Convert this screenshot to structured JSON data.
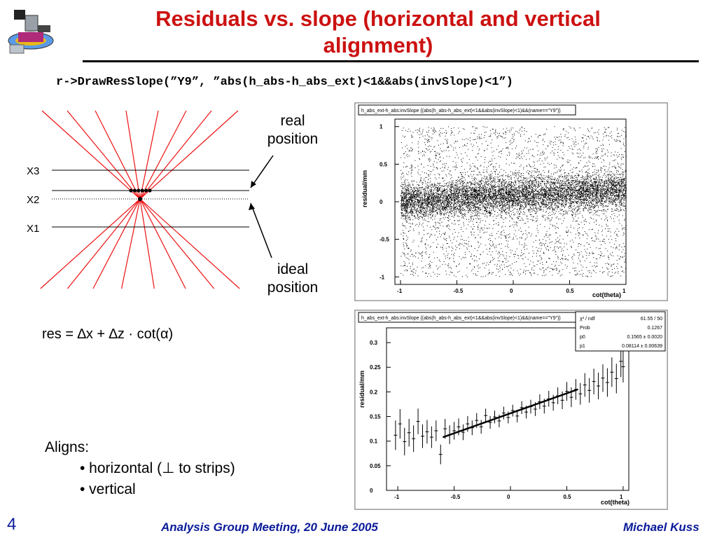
{
  "slide": {
    "title": "Residuals vs. slope (horizontal and vertical alignment)",
    "code_line": "r->DrawResSlope(”Y9”, ”abs(h_abs-h_abs_ext)<1&&abs(invSlope)<1”)",
    "page_number": "4",
    "footer_center": "Analysis Group Meeting, 20 June 2005",
    "footer_right": "Michael Kuss"
  },
  "diagram": {
    "label_real": "real position",
    "label_ideal": "ideal position",
    "planes": [
      "X3",
      "X2",
      "X1"
    ]
  },
  "formula": "res = ∆x + ∆z · cot(α)",
  "aligns": {
    "heading": "Aligns:",
    "items": [
      "• horizontal (⊥ to strips)",
      "• vertical"
    ]
  },
  "colors": {
    "title": "#cc1111",
    "footer": "#0a1a9a",
    "ray": "#ee1111"
  },
  "chart_data": [
    {
      "type": "scatter",
      "title": "h_abs_ext-h_abs:invSlope {(abs(h_abs-h_abs_ext)<1&&abs(invSlope)<1)&&(name==\"Y9\")}",
      "xlabel": "cot(theta)",
      "ylabel": "residual/mm",
      "xlim": [
        -1.05,
        1.0
      ],
      "ylim": [
        -1.1,
        1.1
      ],
      "xticks": [
        "-1",
        "-0.5",
        "0",
        "0.5",
        "1"
      ],
      "yticks": [
        "-1",
        "-0.5",
        "0",
        "0.5",
        "1"
      ],
      "description_core_band": {
        "center": 0.1,
        "spread": 0.12
      },
      "description_background": "uniform"
    },
    {
      "type": "scatter",
      "title": "h_abs_ext-h_abs:invSlope {(abs(h_abs-h_abs_ext)<1&&abs(invSlope)<1)&&(name==\"Y9\")}",
      "xlabel": "cot(theta)",
      "ylabel": "residual/mm",
      "xlim": [
        -1.1,
        1.05
      ],
      "ylim": [
        0,
        0.33
      ],
      "xticks": [
        "-1",
        "-0.5",
        "0",
        "0.5",
        "1"
      ],
      "yticks": [
        "0",
        "0.05",
        "0.1",
        "0.15",
        "0.2",
        "0.25",
        "0.3"
      ],
      "fit": {
        "x_from": -0.6,
        "x_to": 0.6,
        "p0": 0.1565,
        "p1": 0.08114
      },
      "stats": [
        {
          "name": "χ² / ndf",
          "value": "61.55 / 50"
        },
        {
          "name": "Prob",
          "value": "0.1267"
        },
        {
          "name": "p0",
          "value": "0.1565 ± 0.0020"
        },
        {
          "name": "p1",
          "value": "0.08114 ± 0.00639"
        }
      ],
      "points": [
        [
          -1.02,
          0.112,
          0.03
        ],
        [
          -0.98,
          0.135,
          0.03
        ],
        [
          -0.94,
          0.099,
          0.028
        ],
        [
          -0.9,
          0.117,
          0.028
        ],
        [
          -0.86,
          0.105,
          0.027
        ],
        [
          -0.82,
          0.14,
          0.026
        ],
        [
          -0.78,
          0.11,
          0.024
        ],
        [
          -0.74,
          0.119,
          0.024
        ],
        [
          -0.7,
          0.108,
          0.022
        ],
        [
          -0.66,
          0.121,
          0.021
        ],
        [
          -0.62,
          0.073,
          0.02
        ],
        [
          -0.58,
          0.125,
          0.02
        ],
        [
          -0.54,
          0.113,
          0.019
        ],
        [
          -0.5,
          0.121,
          0.018
        ],
        [
          -0.46,
          0.129,
          0.017
        ],
        [
          -0.42,
          0.118,
          0.016
        ],
        [
          -0.38,
          0.135,
          0.016
        ],
        [
          -0.34,
          0.127,
          0.015
        ],
        [
          -0.3,
          0.142,
          0.015
        ],
        [
          -0.26,
          0.129,
          0.014
        ],
        [
          -0.22,
          0.152,
          0.014
        ],
        [
          -0.18,
          0.138,
          0.013
        ],
        [
          -0.14,
          0.149,
          0.013
        ],
        [
          -0.1,
          0.141,
          0.013
        ],
        [
          -0.06,
          0.157,
          0.013
        ],
        [
          -0.02,
          0.148,
          0.012
        ],
        [
          0.02,
          0.162,
          0.012
        ],
        [
          0.06,
          0.151,
          0.013
        ],
        [
          0.1,
          0.168,
          0.013
        ],
        [
          0.14,
          0.159,
          0.013
        ],
        [
          0.18,
          0.17,
          0.014
        ],
        [
          0.22,
          0.165,
          0.014
        ],
        [
          0.26,
          0.18,
          0.015
        ],
        [
          0.3,
          0.171,
          0.015
        ],
        [
          0.34,
          0.186,
          0.016
        ],
        [
          0.38,
          0.178,
          0.016
        ],
        [
          0.42,
          0.192,
          0.017
        ],
        [
          0.46,
          0.183,
          0.018
        ],
        [
          0.5,
          0.201,
          0.019
        ],
        [
          0.54,
          0.189,
          0.02
        ],
        [
          0.58,
          0.205,
          0.021
        ],
        [
          0.62,
          0.196,
          0.022
        ],
        [
          0.66,
          0.214,
          0.024
        ],
        [
          0.7,
          0.203,
          0.025
        ],
        [
          0.74,
          0.221,
          0.026
        ],
        [
          0.78,
          0.212,
          0.027
        ],
        [
          0.82,
          0.228,
          0.028
        ],
        [
          0.86,
          0.219,
          0.029
        ],
        [
          0.9,
          0.24,
          0.03
        ],
        [
          0.94,
          0.227,
          0.03
        ],
        [
          0.98,
          0.262,
          0.032
        ],
        [
          1.0,
          0.251,
          0.032
        ]
      ]
    }
  ]
}
